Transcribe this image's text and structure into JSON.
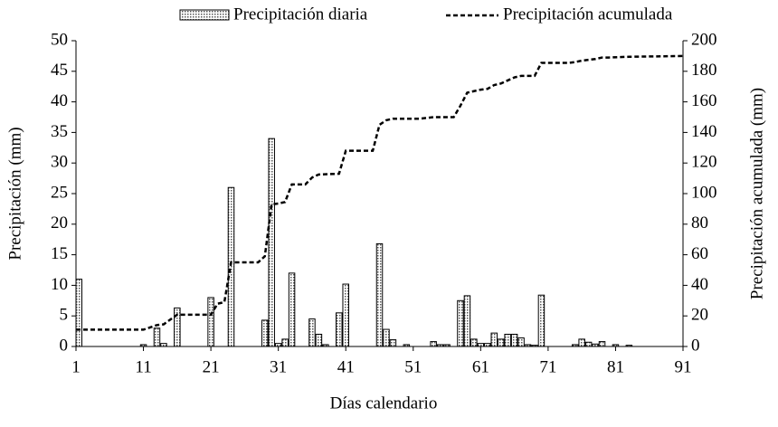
{
  "chart_data": {
    "type": "bar-line",
    "xlabel": "Días calendario",
    "ylabel": "Precipitación (mm)",
    "y2label": "Precipitación acumulada (mm)",
    "xlim": [
      1,
      91
    ],
    "xticks": [
      1,
      11,
      21,
      31,
      41,
      51,
      61,
      71,
      81,
      91
    ],
    "ylim": [
      0,
      50
    ],
    "yticks": [
      0,
      5,
      10,
      15,
      20,
      25,
      30,
      35,
      40,
      45,
      50
    ],
    "y2lim": [
      0,
      200
    ],
    "y2ticks": [
      0,
      20,
      40,
      60,
      80,
      100,
      120,
      140,
      160,
      180,
      200
    ],
    "series": [
      {
        "name": "Precipitación diaria",
        "type": "bar",
        "color": "#000000",
        "x": [
          1,
          11,
          13,
          14,
          16,
          21,
          24,
          29,
          30,
          31,
          32,
          33,
          36,
          37,
          38,
          40,
          41,
          46,
          47,
          48,
          50,
          54,
          55,
          56,
          58,
          59,
          60,
          61,
          62,
          63,
          64,
          65,
          66,
          67,
          68,
          69,
          70,
          75,
          76,
          77,
          78,
          79,
          81,
          83
        ],
        "values": [
          11,
          0.3,
          3,
          0.5,
          6.3,
          8,
          26,
          4.3,
          34,
          0.5,
          1.2,
          12,
          4.5,
          2,
          0.3,
          5.5,
          10.2,
          16.8,
          2.8,
          1.1,
          0.3,
          0.8,
          0.3,
          0.3,
          7.5,
          8.3,
          1.2,
          0.5,
          0.5,
          2.2,
          1.2,
          2,
          2,
          1.4,
          0.3,
          0.2,
          8.4,
          0.3,
          1.2,
          0.7,
          0.4,
          0.8,
          0.3,
          0.2
        ]
      },
      {
        "name": "Precipitación acumulada",
        "type": "line",
        "axis": "y2",
        "color": "#000000",
        "dashed": true,
        "x": [
          1,
          11,
          13,
          14,
          16,
          21,
          22,
          23,
          24,
          28,
          29,
          30,
          31,
          32,
          33,
          35,
          36,
          37,
          40,
          41,
          45,
          46,
          47,
          48,
          52,
          54,
          57,
          58,
          59,
          60,
          61,
          62,
          63,
          64,
          65,
          66,
          67,
          69,
          70,
          74,
          75,
          76,
          77,
          78,
          79,
          80,
          83,
          91
        ],
        "values": [
          11,
          11,
          14,
          14.5,
          20.8,
          20.8,
          28,
          29,
          55,
          55,
          59,
          93,
          93.5,
          94.5,
          106,
          106,
          110.5,
          112.5,
          113,
          128,
          128,
          145,
          148,
          149,
          149,
          150,
          150,
          157.5,
          166,
          167,
          168,
          168.5,
          171,
          172,
          174,
          176,
          177,
          177,
          185.5,
          185.5,
          186,
          187,
          187.5,
          188,
          189,
          189,
          189.5,
          190
        ]
      }
    ]
  }
}
